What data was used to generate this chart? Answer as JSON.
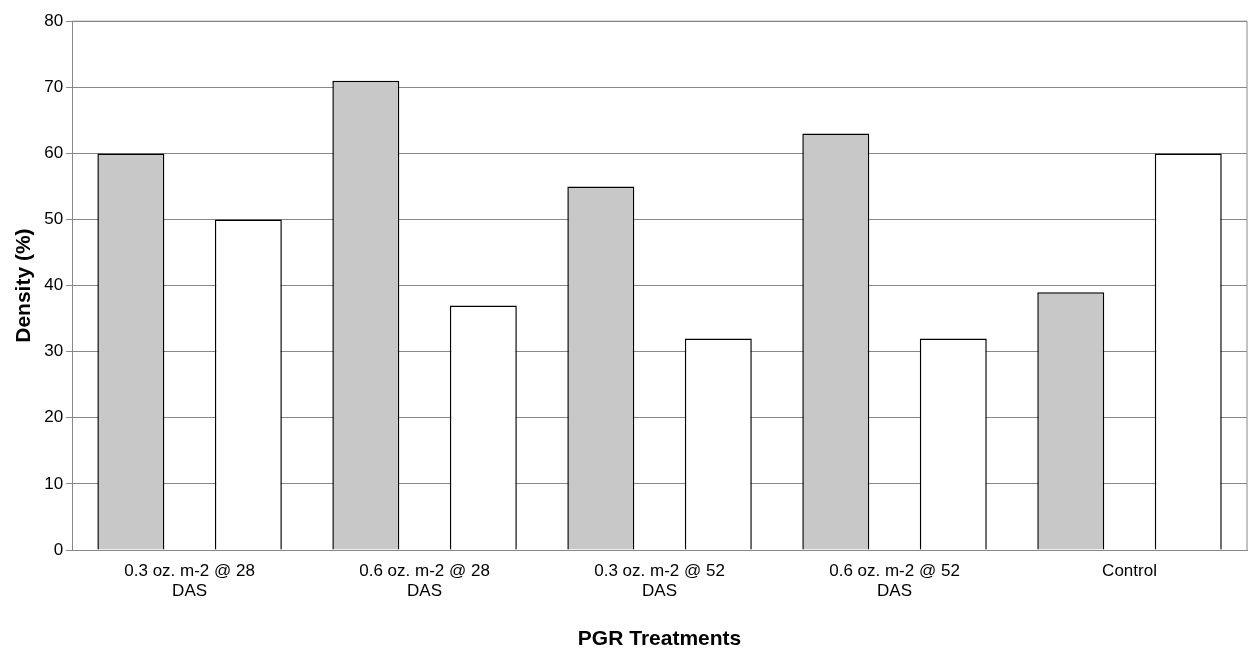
{
  "chart_data": {
    "type": "bar",
    "xlabel": "PGR Treatments",
    "ylabel": "Density (%)",
    "categories": [
      "0.3 oz. m-2 @ 28 DAS",
      "0.6 oz. m-2 @ 28 DAS",
      "0.3 oz. m-2 @ 52 DAS",
      "0.6 oz. m-2 @ 52 DAS",
      "Control"
    ],
    "series": [
      {
        "color": "#c8c8c8",
        "values": [
          60,
          71,
          55,
          63,
          39
        ]
      },
      {
        "color": "#ffffff",
        "values": [
          50,
          37,
          32,
          32,
          60
        ]
      }
    ],
    "ylim": [
      0,
      80
    ],
    "yticks": [
      0,
      10,
      20,
      30,
      40,
      50,
      60,
      70,
      80
    ],
    "grid": "y",
    "legend": false
  }
}
